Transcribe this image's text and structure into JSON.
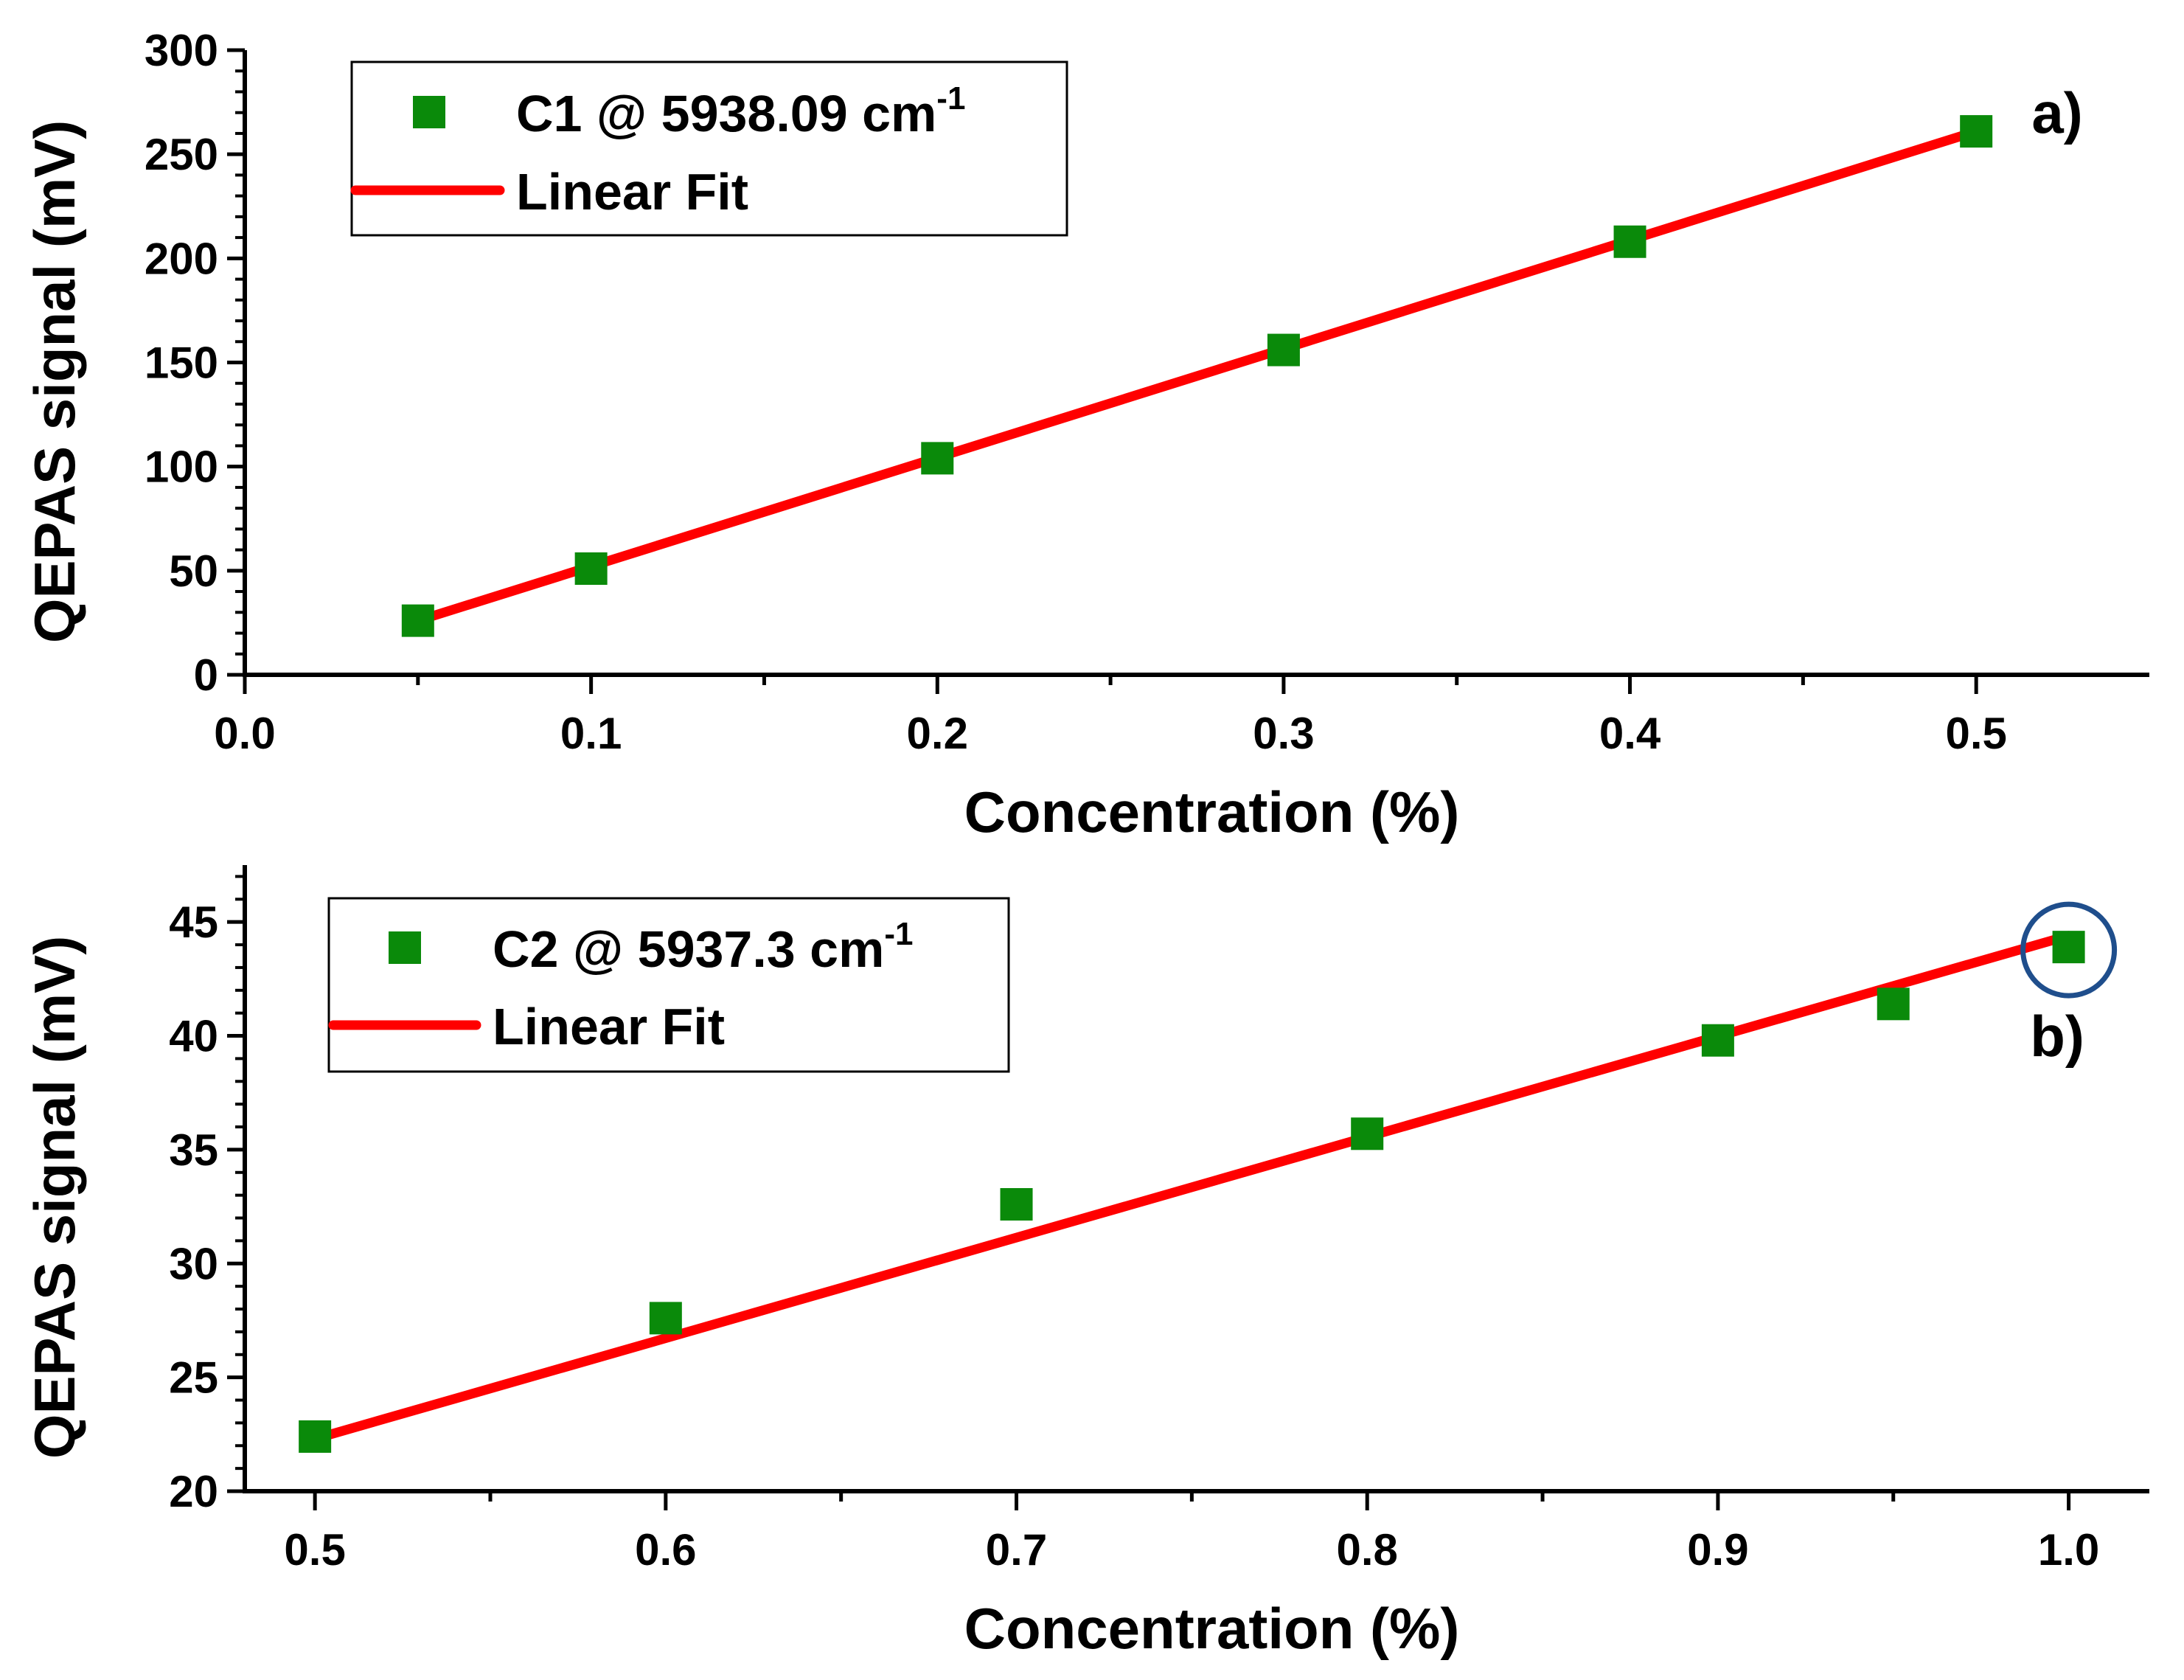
{
  "chart_data": [
    {
      "panel": "a)",
      "type": "scatter",
      "series": [
        {
          "name": "C1 @ 5938.09 cm",
          "name_superscript": "-1",
          "marker": "square",
          "color": "#0a8a0a",
          "x": [
            0.05,
            0.1,
            0.2,
            0.3,
            0.4,
            0.5
          ],
          "y": [
            26,
            51,
            104,
            156,
            208,
            261
          ]
        },
        {
          "name": "Linear Fit",
          "type": "line",
          "color": "#ff0000",
          "x": [
            0.05,
            0.5
          ],
          "y": [
            26,
            261
          ]
        }
      ],
      "xlabel": "Concentration (%)",
      "ylabel": "QEPAS signal (mV)",
      "xlim": [
        0,
        0.55
      ],
      "ylim": [
        0,
        300
      ],
      "xticks": [
        0.0,
        0.1,
        0.2,
        0.3,
        0.4,
        0.5
      ],
      "xtick_labels": [
        "0.0",
        "0.1",
        "0.2",
        "0.3",
        "0.4",
        "0.5"
      ],
      "yticks": [
        0,
        50,
        100,
        150,
        200,
        250,
        300
      ],
      "ytick_labels": [
        "0",
        "50",
        "100",
        "150",
        "200",
        "250",
        "300"
      ],
      "legend_position": "top-left",
      "grid": false
    },
    {
      "panel": "b)",
      "type": "scatter",
      "series": [
        {
          "name": "C2 @ 5937.3 cm",
          "name_superscript": "-1",
          "marker": "square",
          "color": "#0a8a0a",
          "x": [
            0.5,
            0.6,
            0.7,
            0.8,
            0.9,
            0.95,
            1.0
          ],
          "y": [
            22.4,
            27.6,
            32.6,
            35.7,
            39.8,
            41.4,
            43.9
          ]
        },
        {
          "name": "Linear Fit",
          "type": "line",
          "color": "#ff0000",
          "x": [
            0.5,
            1.0
          ],
          "y": [
            22.3,
            44.4
          ]
        }
      ],
      "highlight": {
        "x": 1.0,
        "y": 43.9,
        "shape": "circle",
        "color": "#1f4e8c"
      },
      "xlabel": "Concentration (%)",
      "ylabel": "QEPAS signal (mV)",
      "xlim": [
        0.48,
        1.023
      ],
      "ylim": [
        20,
        47.5
      ],
      "xticks": [
        0.5,
        0.6,
        0.7,
        0.8,
        0.9,
        1.0
      ],
      "xtick_labels": [
        "0.5",
        "0.6",
        "0.7",
        "0.8",
        "0.9",
        "1.0"
      ],
      "yticks": [
        20,
        25,
        30,
        35,
        40,
        45
      ],
      "ytick_labels": [
        "20",
        "25",
        "30",
        "35",
        "40",
        "45"
      ],
      "legend_position": "top-left",
      "grid": false
    }
  ]
}
